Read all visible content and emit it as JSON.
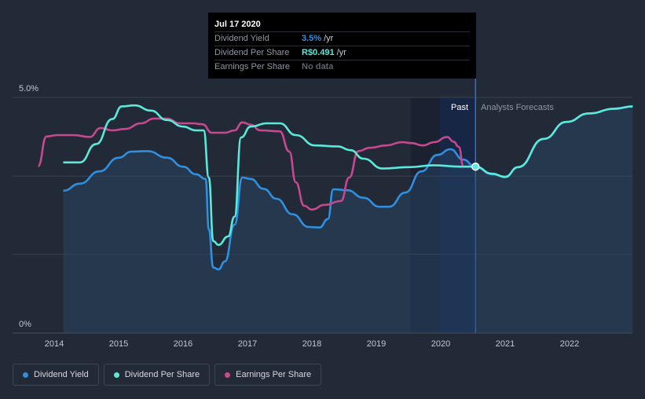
{
  "chart_data": {
    "type": "line",
    "y_ticks": [
      "5.0%",
      "0%"
    ],
    "ylim": [
      0,
      5
    ],
    "x_ticks": [
      "2014",
      "2015",
      "2016",
      "2017",
      "2018",
      "2019",
      "2020",
      "2021",
      "2022"
    ],
    "region_labels": {
      "past": "Past",
      "forecast": "Analysts Forecasts"
    },
    "past_end": 2020.54,
    "highlight_start": 2019.53,
    "series": [
      {
        "name": "Dividend Yield",
        "color": "#2f8fe0",
        "area": true,
        "points": [
          [
            2014.14,
            3.02
          ],
          [
            2014.4,
            3.17
          ],
          [
            2014.7,
            3.43
          ],
          [
            2015.0,
            3.72
          ],
          [
            2015.2,
            3.85
          ],
          [
            2015.45,
            3.86
          ],
          [
            2015.75,
            3.72
          ],
          [
            2016.0,
            3.53
          ],
          [
            2016.2,
            3.37
          ],
          [
            2016.35,
            3.27
          ],
          [
            2016.4,
            2.2
          ],
          [
            2016.47,
            1.39
          ],
          [
            2016.55,
            1.35
          ],
          [
            2016.65,
            1.52
          ],
          [
            2016.8,
            2.3
          ],
          [
            2016.92,
            3.3
          ],
          [
            2017.05,
            3.27
          ],
          [
            2017.25,
            3.06
          ],
          [
            2017.45,
            2.85
          ],
          [
            2017.7,
            2.52
          ],
          [
            2017.95,
            2.25
          ],
          [
            2018.12,
            2.24
          ],
          [
            2018.25,
            2.42
          ],
          [
            2018.33,
            3.05
          ],
          [
            2018.55,
            3.03
          ],
          [
            2018.8,
            2.87
          ],
          [
            2019.05,
            2.68
          ],
          [
            2019.2,
            2.68
          ],
          [
            2019.45,
            2.98
          ],
          [
            2019.7,
            3.43
          ],
          [
            2019.95,
            3.78
          ],
          [
            2020.15,
            3.9
          ],
          [
            2020.35,
            3.68
          ],
          [
            2020.54,
            3.52
          ],
          [
            2020.8,
            3.37
          ],
          [
            2021.0,
            3.32
          ],
          [
            2021.2,
            3.52
          ],
          [
            2021.6,
            4.12
          ],
          [
            2021.95,
            4.48
          ],
          [
            2022.3,
            4.66
          ],
          [
            2022.7,
            4.76
          ],
          [
            2022.98,
            4.81
          ]
        ]
      },
      {
        "name": "Dividend Per Share",
        "color": "#5be9da",
        "area": false,
        "points": [
          [
            2014.14,
            3.62
          ],
          [
            2014.4,
            3.62
          ],
          [
            2014.65,
            4.01
          ],
          [
            2014.9,
            4.54
          ],
          [
            2015.05,
            4.81
          ],
          [
            2015.25,
            4.83
          ],
          [
            2015.5,
            4.72
          ],
          [
            2015.75,
            4.52
          ],
          [
            2016.0,
            4.38
          ],
          [
            2016.2,
            4.3
          ],
          [
            2016.32,
            4.3
          ],
          [
            2016.4,
            3.3
          ],
          [
            2016.47,
            1.95
          ],
          [
            2016.55,
            1.87
          ],
          [
            2016.7,
            2.05
          ],
          [
            2016.8,
            2.47
          ],
          [
            2016.9,
            4.15
          ],
          [
            2017.05,
            4.38
          ],
          [
            2017.3,
            4.45
          ],
          [
            2017.5,
            4.45
          ],
          [
            2017.75,
            4.2
          ],
          [
            2018.05,
            3.98
          ],
          [
            2018.4,
            3.96
          ],
          [
            2018.6,
            3.88
          ],
          [
            2018.8,
            3.7
          ],
          [
            2019.1,
            3.49
          ],
          [
            2019.5,
            3.52
          ],
          [
            2019.9,
            3.56
          ],
          [
            2020.3,
            3.53
          ],
          [
            2020.54,
            3.53
          ],
          [
            2020.8,
            3.38
          ],
          [
            2021.0,
            3.31
          ],
          [
            2021.2,
            3.52
          ],
          [
            2021.6,
            4.12
          ],
          [
            2021.95,
            4.48
          ],
          [
            2022.3,
            4.66
          ],
          [
            2022.7,
            4.76
          ],
          [
            2022.98,
            4.81
          ]
        ]
      },
      {
        "name": "Earnings Per Share",
        "color": "#c6488e",
        "area": false,
        "points": [
          [
            2013.75,
            3.54
          ],
          [
            2013.88,
            4.17
          ],
          [
            2014.05,
            4.2
          ],
          [
            2014.3,
            4.2
          ],
          [
            2014.55,
            4.16
          ],
          [
            2014.72,
            4.35
          ],
          [
            2014.9,
            4.3
          ],
          [
            2015.1,
            4.33
          ],
          [
            2015.35,
            4.45
          ],
          [
            2015.55,
            4.55
          ],
          [
            2015.75,
            4.55
          ],
          [
            2015.95,
            4.45
          ],
          [
            2016.15,
            4.45
          ],
          [
            2016.3,
            4.43
          ],
          [
            2016.45,
            4.25
          ],
          [
            2016.65,
            4.25
          ],
          [
            2016.8,
            4.3
          ],
          [
            2016.92,
            4.47
          ],
          [
            2017.05,
            4.42
          ],
          [
            2017.2,
            4.3
          ],
          [
            2017.5,
            4.28
          ],
          [
            2017.65,
            3.85
          ],
          [
            2017.75,
            3.2
          ],
          [
            2017.88,
            2.7
          ],
          [
            2018.0,
            2.62
          ],
          [
            2018.2,
            2.72
          ],
          [
            2018.45,
            2.8
          ],
          [
            2018.58,
            3.3
          ],
          [
            2018.72,
            3.86
          ],
          [
            2018.9,
            3.93
          ],
          [
            2019.15,
            3.98
          ],
          [
            2019.4,
            4.05
          ],
          [
            2019.55,
            4.03
          ],
          [
            2019.72,
            3.98
          ],
          [
            2019.9,
            4.05
          ],
          [
            2020.1,
            4.16
          ],
          [
            2020.2,
            4.06
          ],
          [
            2020.28,
            3.95
          ],
          [
            2020.35,
            3.55
          ]
        ]
      }
    ],
    "marker": {
      "x": 2020.54,
      "y": 3.53,
      "color": "#5be9da"
    }
  },
  "tooltip": {
    "date": "Jul 17 2020",
    "rows": [
      {
        "label": "Dividend Yield",
        "value": "3.5%",
        "unit": "/yr",
        "color": "#2f8fe0"
      },
      {
        "label": "Dividend Per Share",
        "value": "R$0.491",
        "unit": "/yr",
        "color": "#5be9da"
      },
      {
        "label": "Earnings Per Share",
        "value": "No data",
        "unit": "",
        "color": "#5e6570"
      }
    ]
  },
  "legend": [
    {
      "label": "Dividend Yield",
      "color": "#2f8fe0"
    },
    {
      "label": "Dividend Per Share",
      "color": "#5be9da"
    },
    {
      "label": "Earnings Per Share",
      "color": "#c6488e"
    }
  ]
}
